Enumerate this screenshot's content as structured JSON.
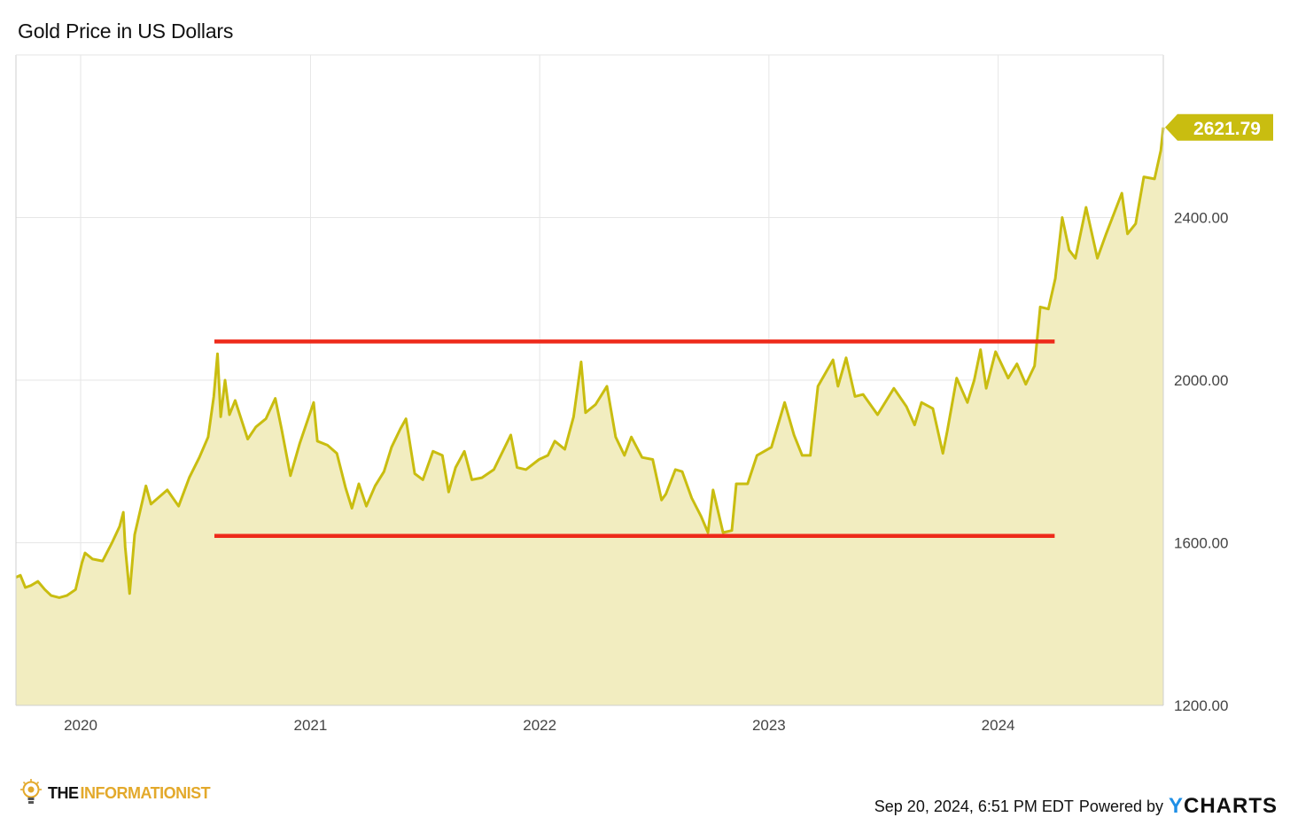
{
  "header": {
    "title": "Gold Price in US Dollars"
  },
  "footer": {
    "brand_the": "THE",
    "brand_rest": "INFORMATIONIST",
    "timestamp": "Sep 20, 2024, 6:51 PM EDT",
    "powered_by": "Powered by",
    "provider_y": "Y",
    "provider_rest": "CHARTS"
  },
  "colors": {
    "line": "#c9bd10",
    "fill": "#f2edc0",
    "band": "#ee2a1a",
    "grid": "#e6e6e6",
    "label_bg": "#c9bd10"
  },
  "chart_data": {
    "type": "area",
    "title": "Gold Price in US Dollars",
    "xlabel": "",
    "ylabel": "",
    "ylim": [
      1200,
      2800
    ],
    "xlim": [
      "2019-09-20",
      "2024-09-20"
    ],
    "yticks": [
      "1200.00",
      "1600.00",
      "2000.00",
      "2400.00"
    ],
    "ytick_values": [
      1200,
      1600,
      2000,
      2400
    ],
    "xticks": [
      "2020",
      "2021",
      "2022",
      "2023",
      "2024"
    ],
    "xtick_dates": [
      "2020-01-01",
      "2021-01-01",
      "2022-01-01",
      "2023-01-01",
      "2024-01-01"
    ],
    "grid": true,
    "last_value_label": "2621.79",
    "series": [
      {
        "values": [
          [
            "2019-09-20",
            1515
          ],
          [
            "2019-09-27",
            1520
          ],
          [
            "2019-10-05",
            1490
          ],
          [
            "2019-10-14",
            1495
          ],
          [
            "2019-10-25",
            1505
          ],
          [
            "2019-11-05",
            1485
          ],
          [
            "2019-11-15",
            1470
          ],
          [
            "2019-11-28",
            1465
          ],
          [
            "2019-12-10",
            1470
          ],
          [
            "2019-12-24",
            1485
          ],
          [
            "2020-01-03",
            1550
          ],
          [
            "2020-01-08",
            1575
          ],
          [
            "2020-01-20",
            1560
          ],
          [
            "2020-02-05",
            1555
          ],
          [
            "2020-02-20",
            1600
          ],
          [
            "2020-03-03",
            1640
          ],
          [
            "2020-03-09",
            1675
          ],
          [
            "2020-03-12",
            1590
          ],
          [
            "2020-03-19",
            1475
          ],
          [
            "2020-03-27",
            1620
          ],
          [
            "2020-04-14",
            1740
          ],
          [
            "2020-04-22",
            1695
          ],
          [
            "2020-05-18",
            1730
          ],
          [
            "2020-06-05",
            1690
          ],
          [
            "2020-06-22",
            1760
          ],
          [
            "2020-07-08",
            1810
          ],
          [
            "2020-07-22",
            1860
          ],
          [
            "2020-07-31",
            1960
          ],
          [
            "2020-08-06",
            2065
          ],
          [
            "2020-08-11",
            1910
          ],
          [
            "2020-08-18",
            2000
          ],
          [
            "2020-08-25",
            1915
          ],
          [
            "2020-09-03",
            1950
          ],
          [
            "2020-09-23",
            1855
          ],
          [
            "2020-10-06",
            1885
          ],
          [
            "2020-10-22",
            1905
          ],
          [
            "2020-11-06",
            1955
          ],
          [
            "2020-11-16",
            1880
          ],
          [
            "2020-11-30",
            1765
          ],
          [
            "2020-12-15",
            1845
          ],
          [
            "2021-01-06",
            1945
          ],
          [
            "2021-01-12",
            1850
          ],
          [
            "2021-01-28",
            1840
          ],
          [
            "2021-02-12",
            1820
          ],
          [
            "2021-02-26",
            1735
          ],
          [
            "2021-03-08",
            1685
          ],
          [
            "2021-03-19",
            1745
          ],
          [
            "2021-03-31",
            1690
          ],
          [
            "2021-04-14",
            1740
          ],
          [
            "2021-04-28",
            1775
          ],
          [
            "2021-05-10",
            1835
          ],
          [
            "2021-05-24",
            1880
          ],
          [
            "2021-06-02",
            1905
          ],
          [
            "2021-06-16",
            1770
          ],
          [
            "2021-06-29",
            1755
          ],
          [
            "2021-07-15",
            1825
          ],
          [
            "2021-07-30",
            1815
          ],
          [
            "2021-08-09",
            1725
          ],
          [
            "2021-08-20",
            1785
          ],
          [
            "2021-09-03",
            1825
          ],
          [
            "2021-09-15",
            1755
          ],
          [
            "2021-10-01",
            1760
          ],
          [
            "2021-10-20",
            1780
          ],
          [
            "2021-11-16",
            1865
          ],
          [
            "2021-11-26",
            1785
          ],
          [
            "2021-12-10",
            1780
          ],
          [
            "2021-12-31",
            1805
          ],
          [
            "2022-01-14",
            1815
          ],
          [
            "2022-01-25",
            1850
          ],
          [
            "2022-02-10",
            1830
          ],
          [
            "2022-02-24",
            1910
          ],
          [
            "2022-03-08",
            2045
          ],
          [
            "2022-03-15",
            1920
          ],
          [
            "2022-03-31",
            1940
          ],
          [
            "2022-04-18",
            1985
          ],
          [
            "2022-05-02",
            1860
          ],
          [
            "2022-05-16",
            1815
          ],
          [
            "2022-05-27",
            1860
          ],
          [
            "2022-06-13",
            1810
          ],
          [
            "2022-06-30",
            1805
          ],
          [
            "2022-07-14",
            1705
          ],
          [
            "2022-07-21",
            1720
          ],
          [
            "2022-08-05",
            1780
          ],
          [
            "2022-08-16",
            1775
          ],
          [
            "2022-08-31",
            1710
          ],
          [
            "2022-09-15",
            1665
          ],
          [
            "2022-09-26",
            1625
          ],
          [
            "2022-10-04",
            1730
          ],
          [
            "2022-10-20",
            1625
          ],
          [
            "2022-11-03",
            1630
          ],
          [
            "2022-11-10",
            1745
          ],
          [
            "2022-11-28",
            1745
          ],
          [
            "2022-12-13",
            1815
          ],
          [
            "2023-01-05",
            1835
          ],
          [
            "2023-01-26",
            1945
          ],
          [
            "2023-02-10",
            1865
          ],
          [
            "2023-02-23",
            1815
          ],
          [
            "2023-03-08",
            1815
          ],
          [
            "2023-03-20",
            1985
          ],
          [
            "2023-04-13",
            2050
          ],
          [
            "2023-04-21",
            1985
          ],
          [
            "2023-05-04",
            2055
          ],
          [
            "2023-05-18",
            1960
          ],
          [
            "2023-05-31",
            1965
          ],
          [
            "2023-06-23",
            1915
          ],
          [
            "2023-07-19",
            1980
          ],
          [
            "2023-08-08",
            1935
          ],
          [
            "2023-08-21",
            1890
          ],
          [
            "2023-09-01",
            1945
          ],
          [
            "2023-09-19",
            1930
          ],
          [
            "2023-10-05",
            1820
          ],
          [
            "2023-10-12",
            1875
          ],
          [
            "2023-10-27",
            2005
          ],
          [
            "2023-11-13",
            1945
          ],
          [
            "2023-11-24",
            2000
          ],
          [
            "2023-12-04",
            2075
          ],
          [
            "2023-12-13",
            1980
          ],
          [
            "2023-12-28",
            2070
          ],
          [
            "2024-01-17",
            2005
          ],
          [
            "2024-01-31",
            2040
          ],
          [
            "2024-02-14",
            1990
          ],
          [
            "2024-02-28",
            2035
          ],
          [
            "2024-03-08",
            2180
          ],
          [
            "2024-03-21",
            2175
          ],
          [
            "2024-04-01",
            2250
          ],
          [
            "2024-04-12",
            2400
          ],
          [
            "2024-04-23",
            2320
          ],
          [
            "2024-05-03",
            2300
          ],
          [
            "2024-05-20",
            2425
          ],
          [
            "2024-06-07",
            2300
          ],
          [
            "2024-06-21",
            2360
          ],
          [
            "2024-07-16",
            2460
          ],
          [
            "2024-07-25",
            2360
          ],
          [
            "2024-08-07",
            2385
          ],
          [
            "2024-08-20",
            2500
          ],
          [
            "2024-09-06",
            2495
          ],
          [
            "2024-09-16",
            2565
          ],
          [
            "2024-09-20",
            2621.79
          ]
        ]
      }
    ],
    "annotations": [
      {
        "type": "horizontal-line",
        "value": 2095,
        "x_start": "2020-08-01",
        "x_end": "2024-03-31",
        "color": "#ee2a1a"
      },
      {
        "type": "horizontal-line",
        "value": 1617,
        "x_start": "2020-08-01",
        "x_end": "2024-03-31",
        "color": "#ee2a1a"
      }
    ]
  }
}
